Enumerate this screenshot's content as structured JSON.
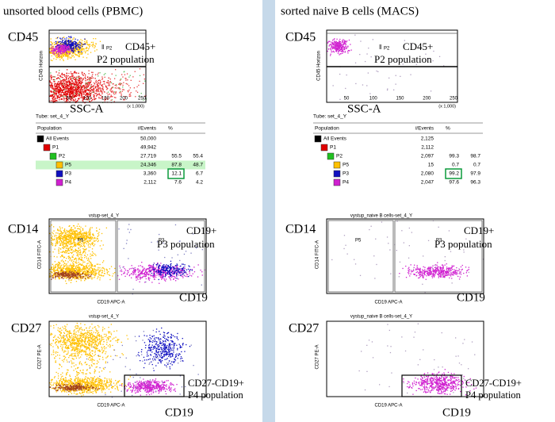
{
  "left": {
    "title": "unsorted blood cells (PBMC)",
    "plot1": {
      "marker": "CD45",
      "ylabel": "CD45 Horizon",
      "gate": "P2",
      "note1": "CD45+",
      "note2": "P2 population",
      "axis": "SSC-A",
      "xticks": [
        "50",
        "100",
        "150",
        "200",
        "250"
      ],
      "xunit": "(x 1,000)"
    },
    "tube": "Tube:  set_4_Y",
    "table": {
      "header": [
        "Population",
        "#Events",
        "%"
      ],
      "rows": [
        {
          "name": "All Events",
          "events": "50,000",
          "color": "#000000"
        },
        {
          "name": "P1",
          "events": "49,942",
          "color": "#e00000"
        },
        {
          "name": "P2",
          "events": "27,719",
          "pct1": "55.5",
          "pct2": "55.4",
          "color": "#20c020"
        },
        {
          "name": "P5",
          "events": "24,346",
          "pct1": "87.8",
          "pct2": "48.7",
          "color": "#ffc000"
        },
        {
          "name": "P3",
          "events": "3,360",
          "pct1": "12.1",
          "pct2": "6.7",
          "color": "#1010c0"
        },
        {
          "name": "P4",
          "events": "2,112",
          "pct1": "7.6",
          "pct2": "4.2",
          "color": "#d020d0"
        }
      ]
    },
    "plot2": {
      "title": "vstup-set_4_Y",
      "marker": "CD14",
      "ylabel": "CD14 FITC-A",
      "xlabel": "CD19 APC-A",
      "gate_a": "P5",
      "gate_b": "P3",
      "note1": "CD19+",
      "note2": "P3 population",
      "axis": "CD19"
    },
    "plot3": {
      "title": "vstup-set_4_Y",
      "marker": "CD27",
      "ylabel": "CD27 PE-A",
      "xlabel": "CD19 APC-A",
      "note1": "CD27-CD19+",
      "note2": "P4 population",
      "axis": "CD19"
    }
  },
  "right": {
    "title": "sorted naive B cells (MACS)",
    "plot1": {
      "marker": "CD45",
      "ylabel": "CD45 Horizon",
      "gate": "P2",
      "note1": "CD45+",
      "note2": "P2 population",
      "axis": "SSC-A",
      "xticks": [
        "50",
        "100",
        "150",
        "200",
        "250"
      ],
      "xunit": "(x 1,000)"
    },
    "tube": "Tube:  set_4_Y",
    "table": {
      "header": [
        "Population",
        "#Events",
        "%"
      ],
      "rows": [
        {
          "name": "All Events",
          "events": "2,125",
          "color": "#000000"
        },
        {
          "name": "P1",
          "events": "2,112",
          "color": "#e00000"
        },
        {
          "name": "P2",
          "events": "2,097",
          "pct1": "99.3",
          "pct2": "98.7",
          "color": "#20c020"
        },
        {
          "name": "P5",
          "events": "15",
          "pct1": "0.7",
          "pct2": "0.7",
          "color": "#ffc000"
        },
        {
          "name": "P3",
          "events": "2,080",
          "pct1": "99.2",
          "pct2": "97.9",
          "color": "#1010c0"
        },
        {
          "name": "P4",
          "events": "2,047",
          "pct1": "97.6",
          "pct2": "96.3",
          "color": "#d020d0"
        }
      ]
    },
    "plot2": {
      "title": "vystup_naive B cells-set_4_Y",
      "marker": "CD14",
      "ylabel": "CD14 FITC-A",
      "xlabel": "CD19 APC-A",
      "gate_a": "P5",
      "gate_b": "P3",
      "note1": "CD19+",
      "note2": "P3 population",
      "axis": "CD19"
    },
    "plot3": {
      "title": "vystup_naive B cells-set_4_Y",
      "marker": "CD27",
      "ylabel": "CD27 PE-A",
      "xlabel": "CD19 APC-A",
      "note1": "CD27-CD19+",
      "note2": "P4 population",
      "axis": "CD19"
    }
  }
}
